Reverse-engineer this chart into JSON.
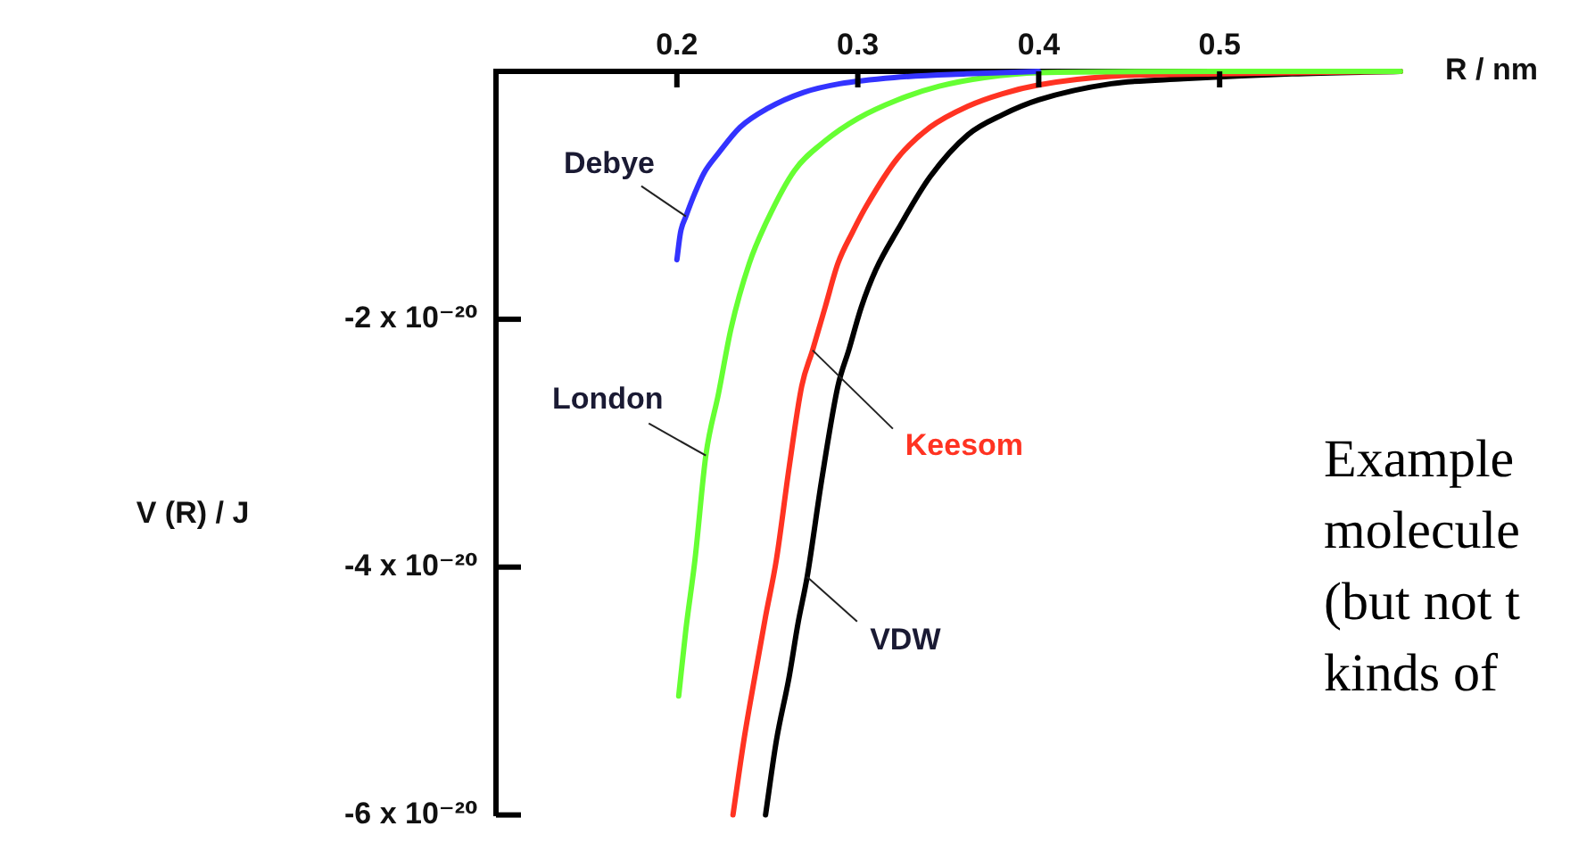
{
  "chart_data": {
    "type": "line",
    "xlabel": "R / nm",
    "ylabel": "V (R) / J",
    "xlim": [
      0.1,
      0.6
    ],
    "xticks": [
      0.2,
      0.3,
      0.4,
      0.5
    ],
    "ylim": [
      -6e-20,
      0
    ],
    "yticks": [
      {
        "value": -2e-20,
        "label": "-2 x 10⁻²⁰"
      },
      {
        "value": -4e-20,
        "label": "-4 x 10⁻²⁰"
      },
      {
        "value": -6e-20,
        "label": "-6 x 10⁻²⁰"
      }
    ],
    "grid": false,
    "legend": false,
    "marker": "none",
    "line_style": "solid",
    "series": [
      {
        "name": "Debye",
        "color": "#3333ff",
        "x": [
          0.2,
          0.202,
          0.205,
          0.21,
          0.215,
          0.223,
          0.235,
          0.25,
          0.27,
          0.29,
          0.32,
          0.36,
          0.4
        ],
        "values": [
          -1.52e-20,
          -1.3e-20,
          -1.17e-20,
          -9.8e-21,
          -8.2e-21,
          -6.6e-21,
          -4.5e-21,
          -3e-21,
          -1.7e-21,
          -1e-21,
          -5e-22,
          -2e-22,
          0
        ]
      },
      {
        "name": "London",
        "color": "#66ff33",
        "x": [
          0.201,
          0.205,
          0.21,
          0.216,
          0.223,
          0.23,
          0.24,
          0.25,
          0.265,
          0.282,
          0.3,
          0.322,
          0.345,
          0.37,
          0.4,
          0.5,
          0.6
        ],
        "values": [
          -5.04e-20,
          -4.5e-20,
          -3.94e-20,
          -3.1e-20,
          -2.6e-20,
          -2.07e-20,
          -1.55e-20,
          -1.2e-20,
          -8e-21,
          -5.6e-21,
          -3.8e-21,
          -2.3e-21,
          -1.2e-21,
          -5e-22,
          -1e-22,
          0,
          0
        ]
      },
      {
        "name": "Keesom",
        "color": "#ff3322",
        "x": [
          0.231,
          0.237,
          0.243,
          0.249,
          0.255,
          0.262,
          0.269,
          0.275,
          0.282,
          0.289,
          0.297,
          0.305,
          0.322,
          0.34,
          0.361,
          0.38,
          0.4,
          0.44,
          0.5,
          0.6
        ],
        "values": [
          -6e-20,
          -5.4e-20,
          -4.89e-20,
          -4.4e-20,
          -3.94e-20,
          -3.2e-20,
          -2.54e-20,
          -2.25e-20,
          -1.9e-20,
          -1.55e-20,
          -1.3e-20,
          -1.08e-20,
          -7e-21,
          -4.5e-21,
          -2.8e-21,
          -1.8e-21,
          -1.1e-21,
          -4e-22,
          -2e-22,
          0
        ]
      },
      {
        "name": "VDW",
        "color": "#000000",
        "x": [
          0.249,
          0.255,
          0.262,
          0.267,
          0.272,
          0.28,
          0.289,
          0.295,
          0.302,
          0.31,
          0.322,
          0.34,
          0.361,
          0.38,
          0.4,
          0.44,
          0.48,
          0.54,
          0.6
        ],
        "values": [
          -6e-20,
          -5.4e-20,
          -4.89e-20,
          -4.45e-20,
          -4.08e-20,
          -3.3e-20,
          -2.54e-20,
          -2.25e-20,
          -1.9e-20,
          -1.6e-20,
          -1.28e-20,
          -8.5e-21,
          -5.1e-21,
          -3.5e-21,
          -2.3e-21,
          -1e-21,
          -6e-22,
          -2e-22,
          0
        ]
      }
    ],
    "annotations": [
      "Example\nmolecule\n(but not t\nkinds of"
    ]
  }
}
